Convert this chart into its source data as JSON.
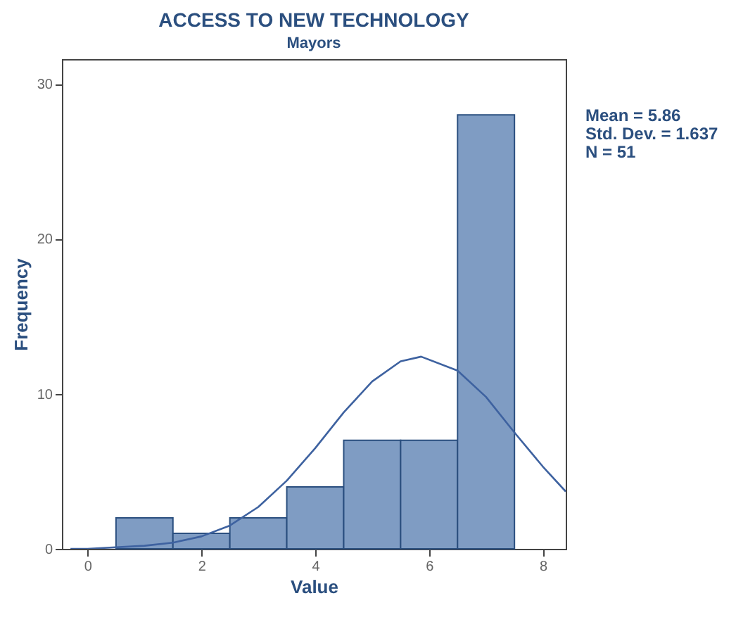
{
  "chart_data": {
    "type": "histogram",
    "title": "ACCESS TO NEW TECHNOLOGY",
    "subtitle": "Mayors",
    "xlabel": "Value",
    "ylabel": "Frequency",
    "bins": [
      0.5,
      1.5,
      2.5,
      3.5,
      4.5,
      5.5,
      6.5,
      7.5
    ],
    "values": [
      2,
      1,
      2,
      4,
      7,
      7,
      28
    ],
    "color": "#7f9cc3",
    "series": [
      {
        "type": "line",
        "color": "#3e62a0",
        "x": [
          -0.3,
          0,
          1,
          1.5,
          2,
          2.5,
          3,
          3.5,
          4,
          4.5,
          5,
          5.5,
          5.86,
          6.5,
          7,
          7.5,
          8,
          8.4
        ],
        "values": [
          0,
          0,
          0.2,
          0.4,
          0.8,
          1.5,
          2.7,
          4.4,
          6.5,
          8.8,
          10.8,
          12.1,
          12.4,
          11.5,
          9.8,
          7.5,
          5.3,
          3.7
        ]
      }
    ],
    "xlim": [
      -0.45,
      8.4
    ],
    "ylim": [
      0,
      31.6
    ],
    "xticks": [
      0,
      2,
      4,
      6,
      8
    ],
    "yticks": [
      0,
      10,
      20,
      30
    ],
    "grid": false,
    "annotations": [
      "Mean = 5.86",
      "Std. Dev. = 1.637",
      "N = 51"
    ]
  }
}
